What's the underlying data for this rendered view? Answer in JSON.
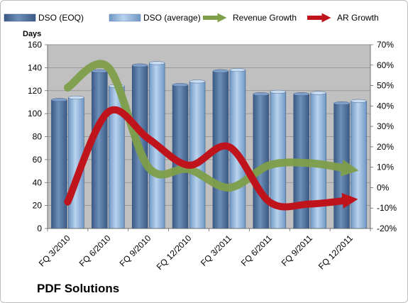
{
  "company": "PDF Solutions",
  "colors": {
    "dso_eoq": "#4a6b95",
    "dso_avg": "#8fb3d8",
    "revenue_growth": "#7f9f4a",
    "ar_growth": "#c0141c",
    "plot_bg": "#c0c0c0"
  },
  "chart_data": {
    "type": "bar",
    "categories": [
      "FQ 3/2010",
      "FQ 6/2010",
      "FQ 9/2010",
      "FQ 12/2010",
      "FQ 3/2011",
      "FQ 6/2011",
      "FQ 9/2011",
      "FQ 12/2011"
    ],
    "y_left": {
      "label": "Days",
      "min": 0,
      "max": 160,
      "ticks": [
        0,
        20,
        40,
        60,
        80,
        100,
        120,
        140,
        160
      ]
    },
    "y_right": {
      "min": -20,
      "max": 70,
      "ticks": [
        "-20%",
        "-10%",
        "0%",
        "10%",
        "20%",
        "30%",
        "40%",
        "50%",
        "60%",
        "70%"
      ]
    },
    "series": [
      {
        "name": "DSO (EOQ)",
        "type": "bar",
        "axis": "left",
        "values": [
          112,
          137,
          142,
          125,
          137,
          117,
          117,
          109
        ]
      },
      {
        "name": "DSO (average)",
        "type": "bar",
        "axis": "left",
        "values": [
          114,
          124,
          144,
          128,
          138,
          119,
          118,
          111
        ]
      },
      {
        "name": "Revenue Growth",
        "type": "line",
        "axis": "right",
        "unit": "%",
        "values": [
          49,
          59,
          10,
          9,
          0,
          11,
          12,
          9
        ]
      },
      {
        "name": "AR Growth",
        "type": "line",
        "axis": "right",
        "unit": "%",
        "values": [
          -7,
          37,
          24,
          11,
          20,
          -7,
          -8,
          -6
        ]
      }
    ],
    "grid": true,
    "legend": "top"
  }
}
